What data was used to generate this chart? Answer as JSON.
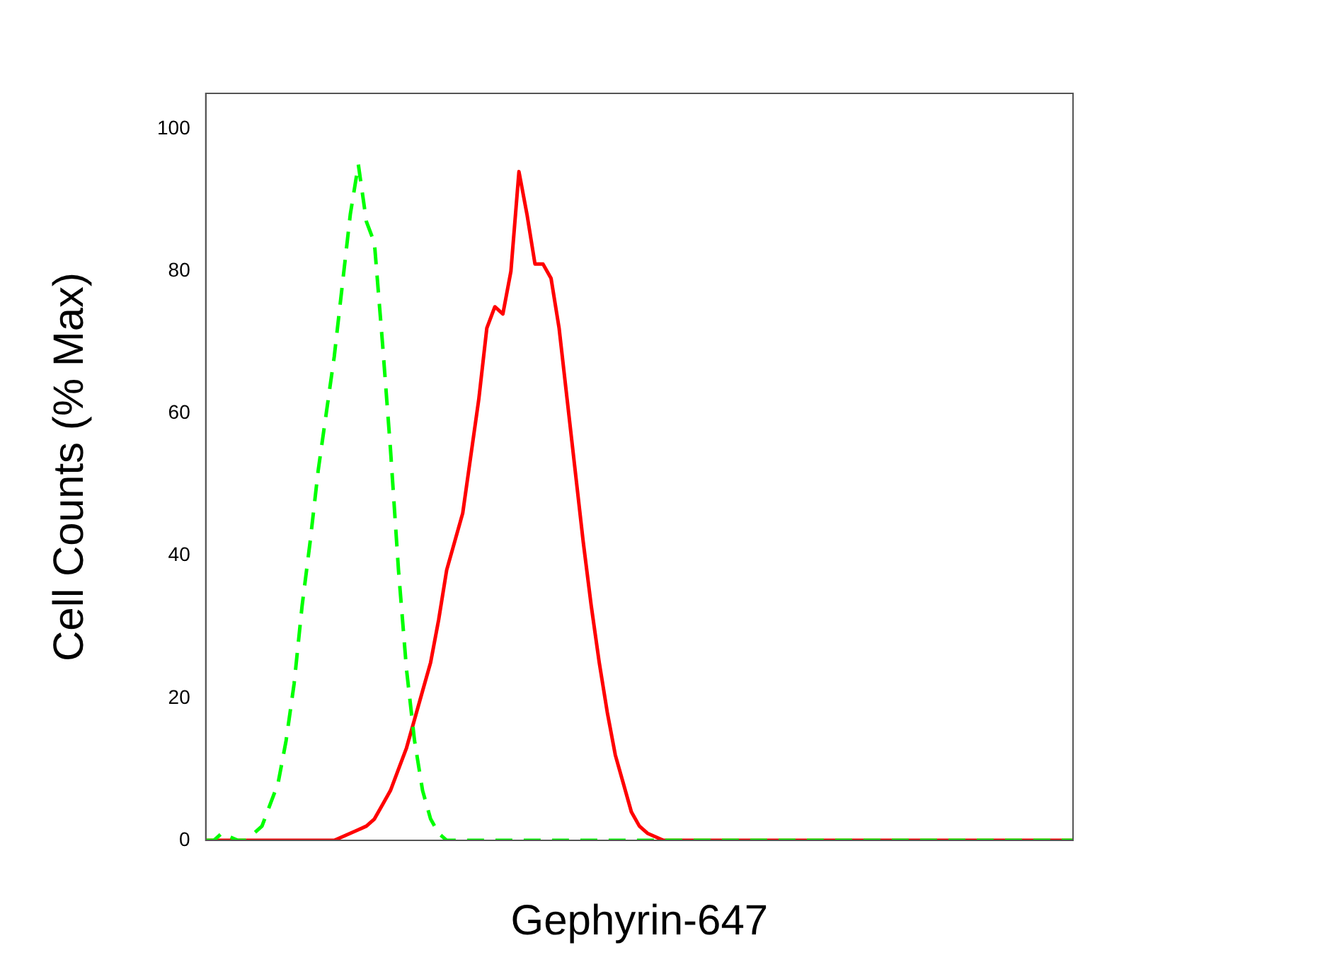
{
  "chart_data": {
    "type": "line",
    "xlabel": "Gephyrin-647",
    "ylabel": "Cell Counts (% Max)",
    "categories": [
      null,
      null,
      null,
      null,
      null,
      null,
      null,
      null,
      null,
      null,
      null,
      null,
      null,
      null,
      null,
      null,
      null,
      null,
      null,
      null,
      null,
      null,
      null,
      null,
      null,
      null,
      null,
      null,
      null,
      null,
      null,
      null,
      null,
      null,
      null,
      null,
      null,
      null,
      null,
      null,
      null,
      null,
      null,
      null,
      null,
      null,
      null,
      null,
      null,
      null,
      null,
      null,
      null,
      null,
      null,
      null,
      null,
      null,
      null,
      null,
      null,
      null,
      null,
      null,
      null,
      null,
      null,
      null,
      null,
      null,
      null,
      null,
      null,
      null,
      null,
      null,
      null,
      null,
      null,
      null,
      null,
      null,
      null,
      null,
      null,
      null,
      null,
      null,
      null,
      null,
      null,
      null,
      null,
      null,
      null,
      null,
      null,
      null,
      null,
      null,
      null,
      null,
      null,
      null,
      null,
      null,
      null,
      null,
      null
    ],
    "series": [
      {
        "color": "#00ff00",
        "line_style": "dashed",
        "values": [
          0,
          0,
          1,
          0.5,
          0,
          0,
          1,
          2,
          5,
          8,
          14,
          22,
          33,
          42,
          52,
          60,
          68,
          78,
          88,
          95,
          87,
          84,
          70,
          55,
          38,
          24,
          14,
          7,
          3,
          1,
          0,
          0,
          0,
          0,
          0,
          0,
          0,
          0,
          0,
          0,
          0,
          0,
          0,
          0,
          0,
          0,
          0,
          0,
          0,
          0,
          0,
          0,
          0,
          0,
          0,
          0,
          0,
          0,
          0,
          0,
          0,
          0,
          0,
          0,
          0,
          0,
          0,
          0,
          0,
          0,
          0,
          0,
          0,
          0,
          0,
          0,
          0,
          0,
          0,
          0,
          0,
          0,
          0,
          0,
          0,
          0,
          0,
          0,
          0,
          0,
          0,
          0,
          0,
          0,
          0,
          0,
          0,
          0,
          0,
          0,
          0,
          0,
          0,
          0,
          0,
          0,
          0,
          0,
          0
        ]
      },
      {
        "color": "#ff0000",
        "line_style": "solid",
        "values": [
          0,
          0,
          0,
          0,
          0,
          0,
          0,
          0,
          0,
          0,
          0,
          0,
          0,
          0,
          0,
          0,
          0,
          0.5,
          1,
          1.5,
          2,
          3,
          5,
          7,
          10,
          13,
          17,
          21,
          25,
          31,
          38,
          42,
          46,
          54,
          62,
          72,
          75,
          74,
          80,
          94,
          88,
          81,
          81,
          79,
          72,
          62,
          52,
          42,
          33,
          25,
          18,
          12,
          8,
          4,
          2,
          1,
          0.5,
          0,
          0,
          0,
          0,
          0,
          0,
          0,
          0,
          0,
          0,
          0,
          0,
          0,
          0,
          0,
          0,
          0,
          0,
          0,
          0,
          0,
          0,
          0,
          0,
          0,
          0,
          0,
          0,
          0,
          0,
          0,
          0,
          0,
          0,
          0,
          0,
          0,
          0,
          0,
          0,
          0,
          0,
          0,
          0,
          0,
          0,
          0,
          0,
          0,
          0,
          0,
          0
        ]
      }
    ],
    "ylim": [
      0,
      105
    ],
    "yticks": [
      0,
      20,
      40,
      60,
      80,
      100
    ],
    "grid": false,
    "legend": false,
    "marker": "none"
  }
}
